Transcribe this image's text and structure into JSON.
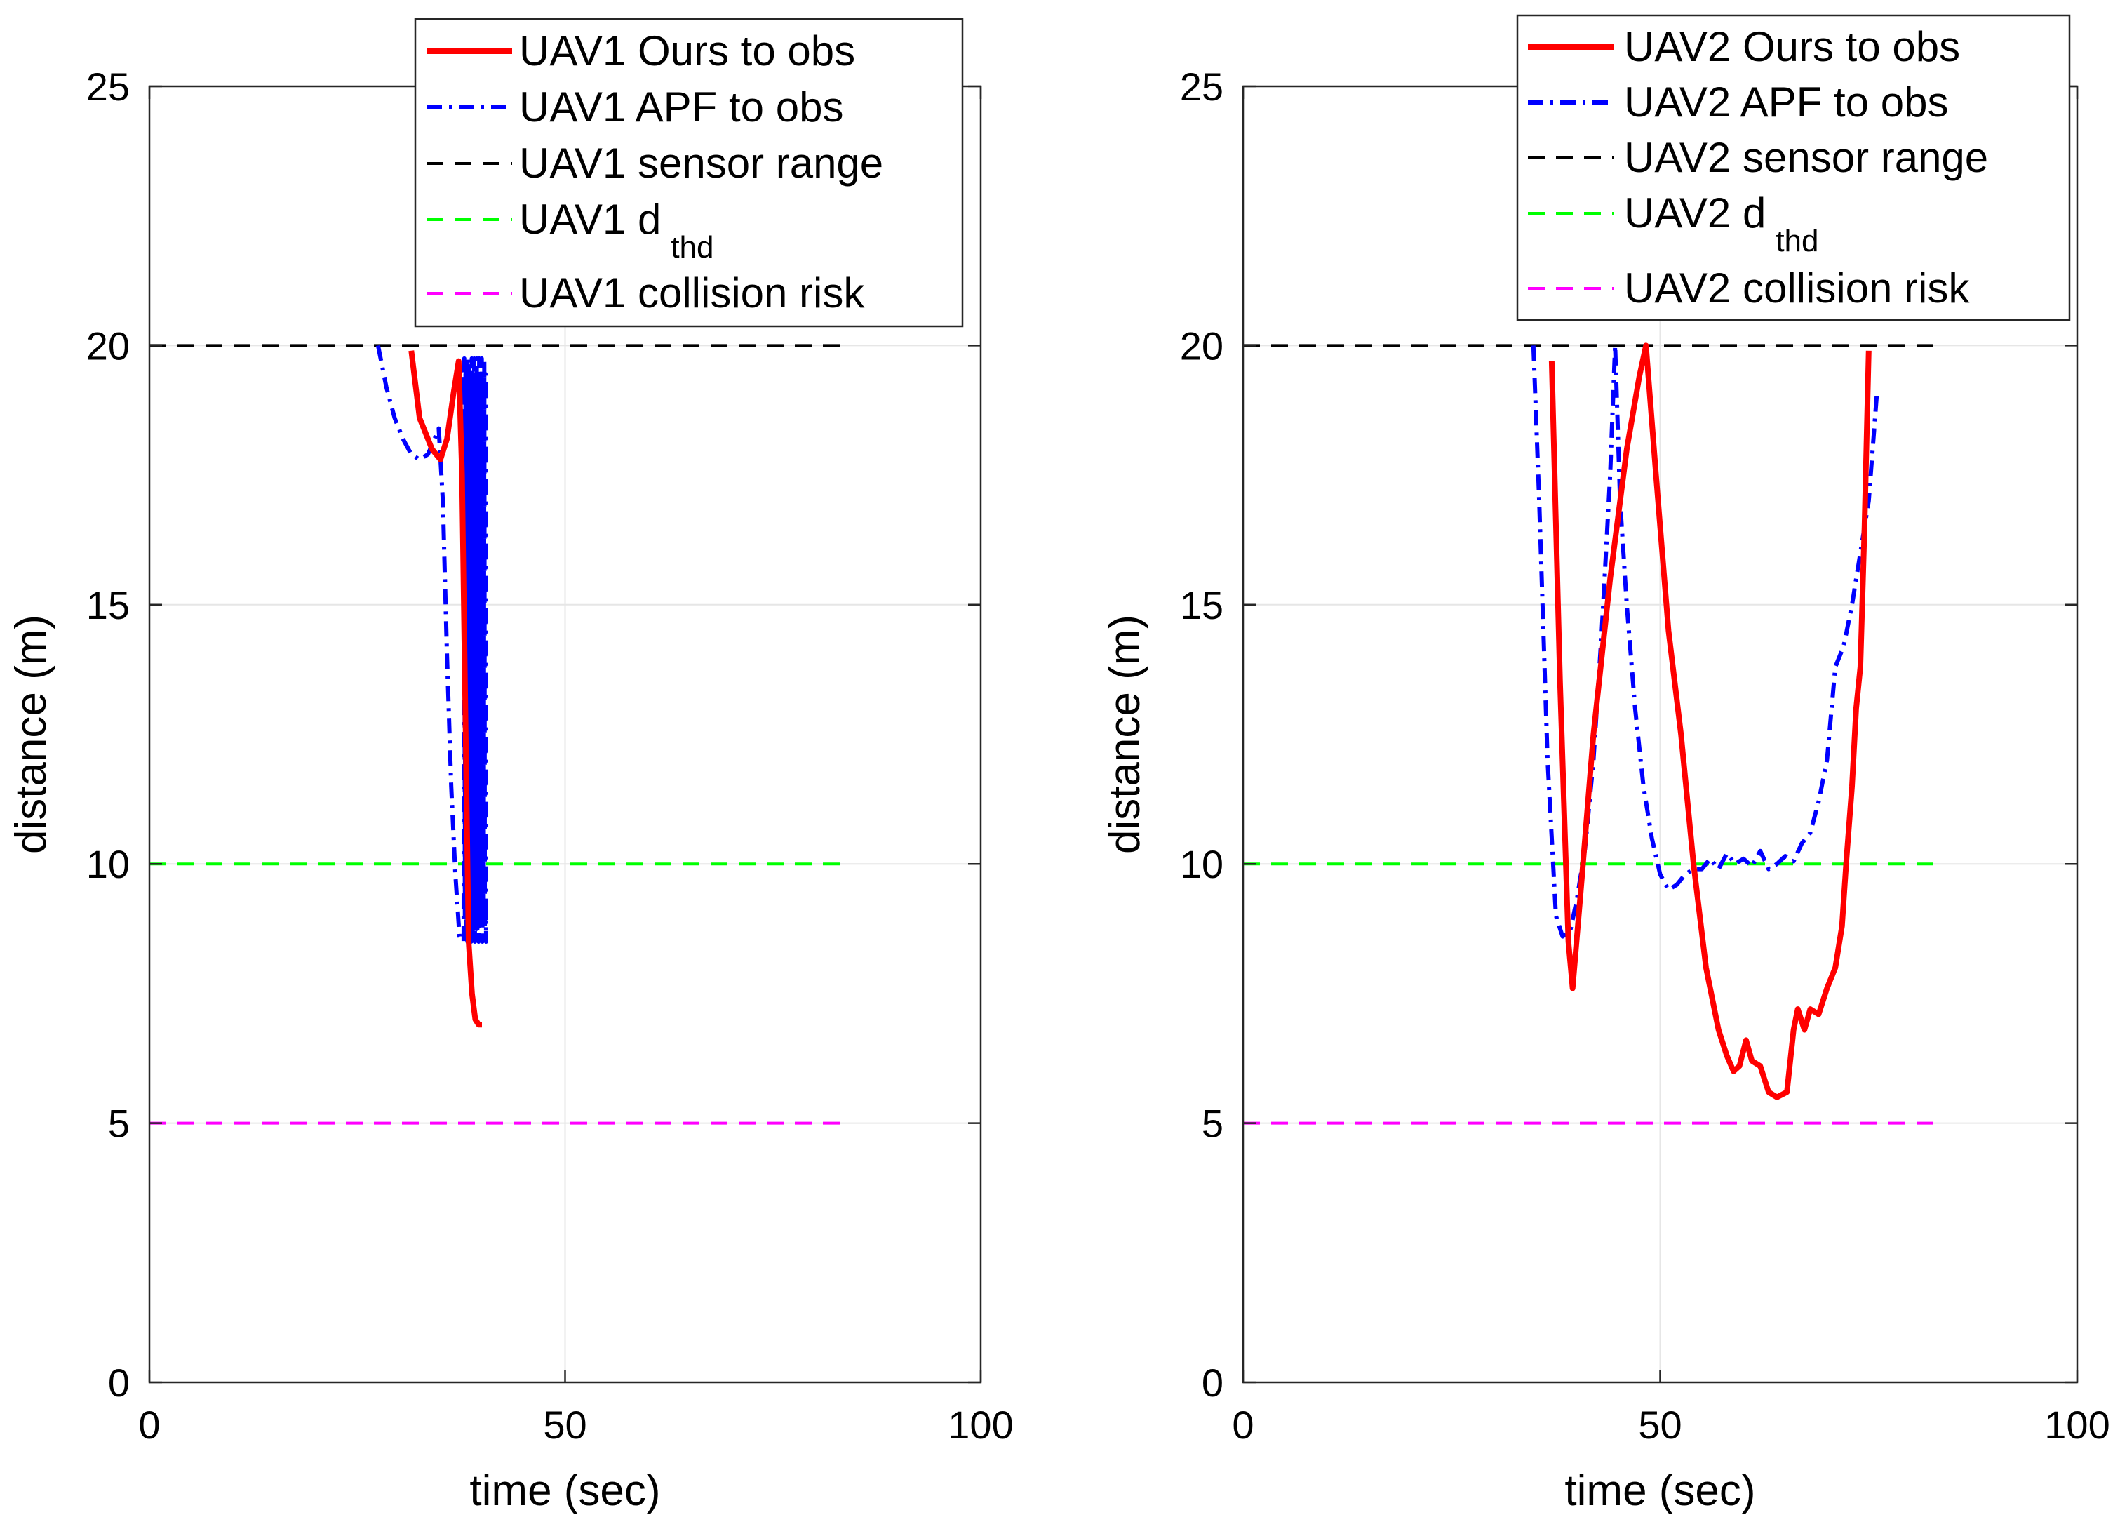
{
  "chart_data": [
    {
      "type": "line",
      "xlabel": "time (sec)",
      "ylabel": "distance (m)",
      "xlim": [
        0,
        100
      ],
      "ylim": [
        0,
        25
      ],
      "xticks": [
        "0",
        "50",
        "100"
      ],
      "yticks": [
        "0",
        "5",
        "10",
        "15",
        "20",
        "25"
      ],
      "grid": true,
      "legend_position": "top-right",
      "series": [
        {
          "name": "UAV1 Ours to obs",
          "style": "solid",
          "color": "#ff0000",
          "x": [
            31.5,
            32.5,
            34,
            35,
            35.8,
            36.6,
            37.2,
            37.6,
            38,
            38.4,
            38.8,
            39.2,
            39.6,
            40
          ],
          "y": [
            19.9,
            18.6,
            18.0,
            17.8,
            18.2,
            19.1,
            19.7,
            17.5,
            13,
            8.5,
            7.5,
            7.0,
            6.9,
            6.9
          ]
        },
        {
          "name": "UAV1 APF to obs",
          "style": "dashdot",
          "color": "#0000ff",
          "x": [
            27.5,
            28.5,
            29.5,
            30.5,
            31.5,
            32.5,
            33.5,
            34.3,
            34.8,
            35.3,
            35.8,
            36.3,
            36.8,
            37.3,
            37.8,
            38.1,
            38.3,
            38.6,
            38.9,
            39.2,
            39.5,
            39.8,
            40.1,
            40.4
          ],
          "y": [
            20,
            19.2,
            18.6,
            18.2,
            17.9,
            17.8,
            17.9,
            18.2,
            18.4,
            17.0,
            14.0,
            11.5,
            9.8,
            8.6,
            8.5,
            19.8,
            8.6,
            19.6,
            8.7,
            19.3,
            8.9,
            19.9,
            9.1,
            9.3
          ],
          "oscillation": {
            "x_range": [
              37.8,
              40.5
            ],
            "y_range": [
              8.5,
              19.9
            ]
          }
        },
        {
          "name": "UAV1 sensor range",
          "style": "dashed",
          "color": "#000000",
          "x": [
            0,
            84
          ],
          "y": [
            20,
            20
          ]
        },
        {
          "name": "UAV1 d",
          "name_subscript": "thd",
          "style": "dashed",
          "color": "#00ff00",
          "x": [
            0,
            84
          ],
          "y": [
            10,
            10
          ]
        },
        {
          "name": "UAV1 collision risk",
          "style": "dashed",
          "color": "#ff00ff",
          "x": [
            0,
            84
          ],
          "y": [
            5,
            5
          ]
        }
      ]
    },
    {
      "type": "line",
      "xlabel": "time (sec)",
      "ylabel": "distance (m)",
      "xlim": [
        0,
        100
      ],
      "ylim": [
        0,
        25
      ],
      "xticks": [
        "0",
        "50",
        "100"
      ],
      "yticks": [
        "0",
        "5",
        "10",
        "15",
        "20",
        "25"
      ],
      "grid": true,
      "legend_position": "top-right",
      "series": [
        {
          "name": "UAV2 Ours to obs",
          "style": "solid",
          "color": "#ff0000",
          "x": [
            37,
            38,
            39,
            39.5,
            40.5,
            42,
            44,
            46,
            47.5,
            48.3,
            49.5,
            51,
            52.5,
            54,
            55.5,
            57,
            58,
            58.8,
            59.5,
            60.3,
            61,
            62,
            63,
            64,
            65.2,
            66,
            66.5,
            67.3,
            68,
            69,
            70,
            71,
            71.8,
            72.3,
            73,
            73.5,
            74,
            74.5,
            75
          ],
          "y": [
            19.7,
            13.5,
            8.5,
            7.6,
            9.5,
            12.5,
            15.5,
            18.0,
            19.4,
            20.0,
            17.5,
            14.5,
            12.5,
            10.0,
            8.0,
            6.8,
            6.3,
            6.0,
            6.1,
            6.6,
            6.2,
            6.1,
            5.6,
            5.5,
            5.6,
            6.8,
            7.2,
            6.8,
            7.2,
            7.1,
            7.6,
            8.0,
            8.8,
            10.0,
            11.5,
            13.0,
            13.8,
            16.5,
            19.9
          ]
        },
        {
          "name": "UAV2 APF to obs",
          "style": "dashdot",
          "color": "#0000ff",
          "x": [
            34.8,
            35.5,
            36.5,
            37.5,
            38.3,
            39.2,
            40,
            41,
            42,
            43,
            44,
            44.6,
            45.2,
            46,
            47,
            48,
            49,
            50,
            51,
            52,
            53,
            54,
            55,
            56,
            57,
            58,
            59,
            60,
            61,
            62,
            63,
            64,
            65,
            66,
            67,
            68,
            69,
            70,
            71,
            72,
            73,
            74,
            75,
            76
          ],
          "y": [
            20,
            17,
            12,
            9.0,
            8.6,
            8.7,
            9.3,
            10.3,
            12.0,
            14.5,
            17.5,
            20.0,
            17.0,
            15.0,
            13.0,
            11.5,
            10.5,
            9.8,
            9.5,
            9.6,
            9.8,
            9.9,
            9.9,
            10.1,
            9.9,
            10.2,
            10.0,
            10.1,
            9.95,
            10.25,
            9.9,
            10.0,
            10.15,
            10.05,
            10.4,
            10.6,
            11.2,
            12.0,
            13.8,
            14.2,
            15.0,
            16.0,
            17.0,
            19.1
          ]
        },
        {
          "name": "UAV2 sensor range",
          "style": "dashed",
          "color": "#000000",
          "x": [
            0,
            84
          ],
          "y": [
            20,
            20
          ]
        },
        {
          "name": "UAV2 d",
          "name_subscript": "thd",
          "style": "dashed",
          "color": "#00ff00",
          "x": [
            0,
            84
          ],
          "y": [
            10,
            10
          ]
        },
        {
          "name": "UAV2 collision risk",
          "style": "dashed",
          "color": "#ff00ff",
          "x": [
            0,
            84
          ],
          "y": [
            5,
            5
          ]
        }
      ]
    }
  ]
}
